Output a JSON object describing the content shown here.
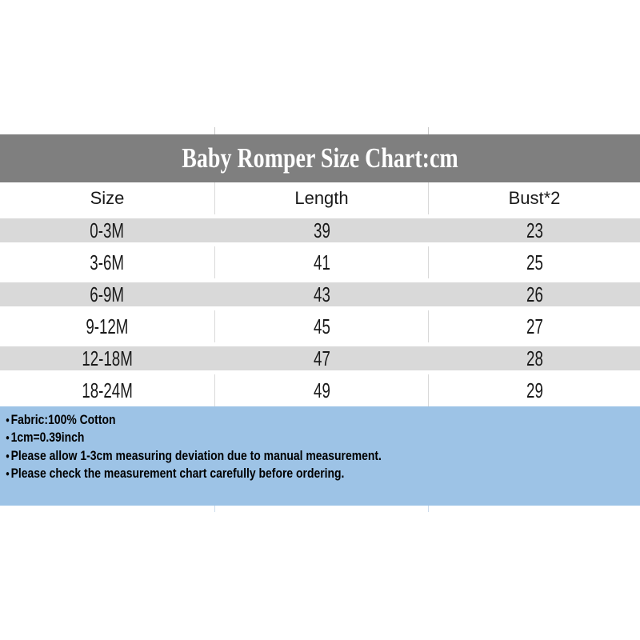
{
  "banner": {
    "title": "Baby Romper Size Chart:cm",
    "bg_color": "#7f7f7f",
    "text_color": "#ffffff"
  },
  "table": {
    "columns": [
      "Size",
      "Length",
      "Bust*2"
    ],
    "rows": [
      {
        "size": "0-3M",
        "length": "39",
        "bust": "23"
      },
      {
        "size": "3-6M",
        "length": "41",
        "bust": "25"
      },
      {
        "size": "6-9M",
        "length": "43",
        "bust": "26"
      },
      {
        "size": "9-12M",
        "length": "45",
        "bust": "27"
      },
      {
        "size": "12-18M",
        "length": "47",
        "bust": "28"
      },
      {
        "size": "18-24M",
        "length": "49",
        "bust": "29"
      }
    ],
    "stripe_color": "#d9d9d9",
    "grid_color": "#d9d9d9"
  },
  "notes": {
    "bullet": "●",
    "lines": [
      "Fabric:100% Cotton",
      "1cm=0.39inch",
      "Please allow 1-3cm measuring deviation due to manual measurement.",
      "Please check the measurement chart carefully before ordering."
    ],
    "bg_color": "#9dc3e6",
    "text_color": "#000000"
  },
  "chart_data": {
    "type": "table",
    "title": "Baby Romper Size Chart:cm",
    "unit": "cm",
    "columns": [
      "Size",
      "Length",
      "Bust*2"
    ],
    "rows": [
      [
        "0-3M",
        39,
        23
      ],
      [
        "3-6M",
        41,
        25
      ],
      [
        "6-9M",
        43,
        26
      ],
      [
        "9-12M",
        45,
        27
      ],
      [
        "12-18M",
        47,
        28
      ],
      [
        "18-24M",
        49,
        29
      ]
    ],
    "notes": [
      "Fabric:100% Cotton",
      "1cm=0.39inch",
      "Please allow 1-3cm measuring deviation due to manual measurement.",
      "Please check the measurement chart carefully before ordering."
    ]
  }
}
